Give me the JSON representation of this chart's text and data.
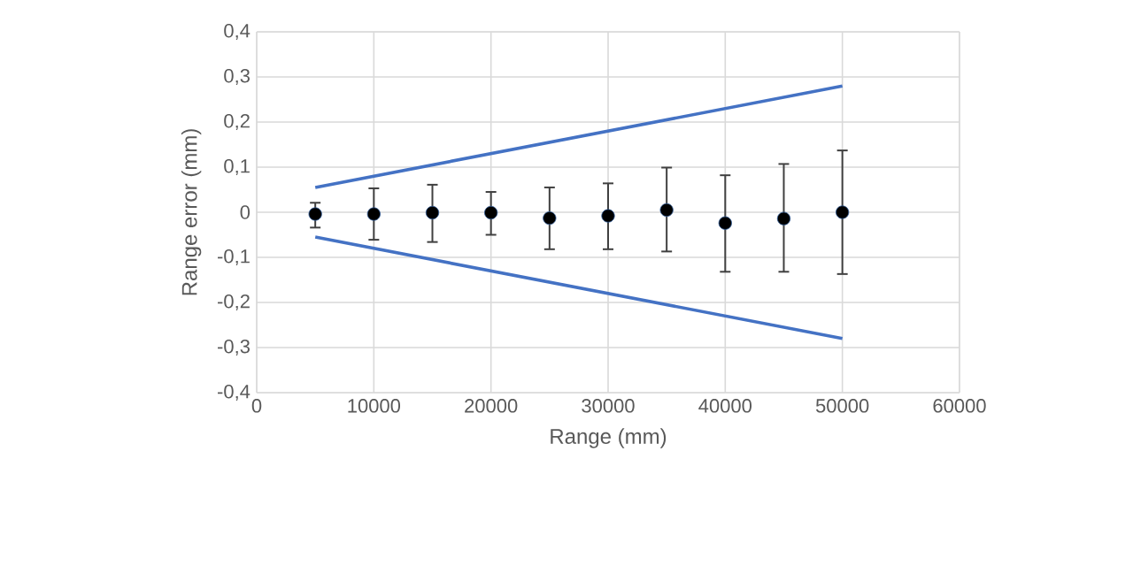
{
  "chart_data": {
    "type": "scatter",
    "xlabel": "Range (mm)",
    "ylabel": "Range error (mm)",
    "xlim": [
      0,
      60000
    ],
    "xticks": [
      0,
      10000,
      20000,
      30000,
      40000,
      50000,
      60000
    ],
    "ylim": [
      -0.4,
      0.4
    ],
    "yticks": [
      {
        "value": -0.4,
        "label": "-0,4"
      },
      {
        "value": -0.3,
        "label": "-0,3"
      },
      {
        "value": -0.2,
        "label": "-0,2"
      },
      {
        "value": -0.1,
        "label": "-0,1"
      },
      0,
      {
        "value": 0.1,
        "label": "0,1"
      },
      {
        "value": 0.2,
        "label": "0,2"
      },
      {
        "value": 0.3,
        "label": "0,3"
      },
      {
        "value": 0.4,
        "label": "0,4"
      }
    ],
    "grid": true,
    "series": [
      {
        "type": "scatter",
        "marker": "circle",
        "color": "#000000",
        "x": [
          5000,
          10000,
          15000,
          20000,
          25000,
          30000,
          35000,
          40000,
          45000,
          50000
        ],
        "values": [
          -0.004,
          -0.004,
          -0.001,
          -0.001,
          -0.013,
          -0.008,
          0.005,
          -0.024,
          -0.014,
          0.0
        ],
        "errors": [
          [
            -0.034,
            0.021
          ],
          [
            -0.061,
            0.053
          ],
          [
            -0.066,
            0.061
          ],
          [
            -0.05,
            0.045
          ],
          [
            -0.082,
            0.055
          ],
          [
            -0.082,
            0.064
          ],
          [
            -0.087,
            0.099
          ],
          [
            -0.132,
            0.082
          ],
          [
            -0.132,
            0.107
          ],
          [
            -0.137,
            0.137
          ]
        ]
      },
      {
        "type": "line",
        "color": "#4472c4",
        "x": [
          5000,
          50000
        ],
        "values": [
          0.055,
          0.28
        ]
      },
      {
        "type": "line",
        "color": "#4472c4",
        "x": [
          5000,
          50000
        ],
        "values": [
          -0.055,
          -0.28
        ]
      }
    ]
  }
}
